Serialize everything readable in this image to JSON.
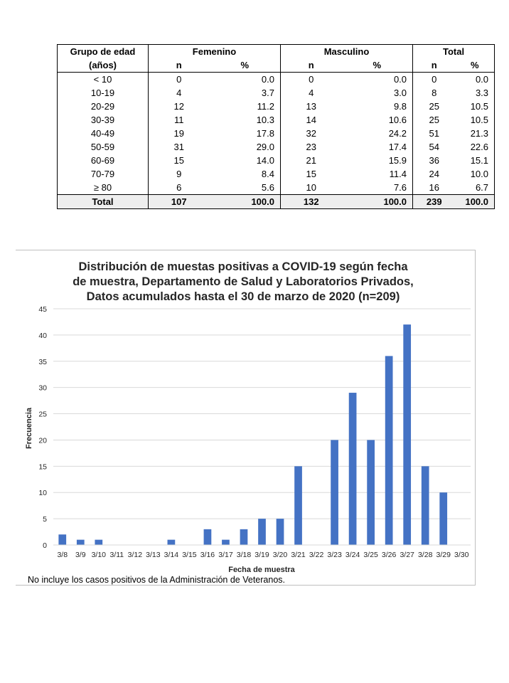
{
  "table": {
    "header_row1": [
      "Grupo de edad",
      "Femenino",
      "Masculino",
      "Total"
    ],
    "header_row2": [
      "(años)",
      "n",
      "%",
      "n",
      "%",
      "n",
      "%"
    ],
    "rows": [
      [
        "< 10",
        "0",
        "0.0",
        "0",
        "0.0",
        "0",
        "0.0"
      ],
      [
        "10-19",
        "4",
        "3.7",
        "4",
        "3.0",
        "8",
        "3.3"
      ],
      [
        "20-29",
        "12",
        "11.2",
        "13",
        "9.8",
        "25",
        "10.5"
      ],
      [
        "30-39",
        "11",
        "10.3",
        "14",
        "10.6",
        "25",
        "10.5"
      ],
      [
        "40-49",
        "19",
        "17.8",
        "32",
        "24.2",
        "51",
        "21.3"
      ],
      [
        "50-59",
        "31",
        "29.0",
        "23",
        "17.4",
        "54",
        "22.6"
      ],
      [
        "60-69",
        "15",
        "14.0",
        "21",
        "15.9",
        "36",
        "15.1"
      ],
      [
        "70-79",
        "9",
        "8.4",
        "15",
        "11.4",
        "24",
        "10.0"
      ],
      [
        "≥ 80",
        "6",
        "5.6",
        "10",
        "7.6",
        "16",
        "6.7"
      ]
    ],
    "total_row": [
      "Total",
      "107",
      "100.0",
      "132",
      "100.0",
      "239",
      "100.0"
    ]
  },
  "chart_data": {
    "type": "bar",
    "title_lines": [
      "Distribución de muestas positivas a COVID-19 según fecha",
      "de muestra, Departamento de Salud y Laboratorios Privados,",
      "Datos acumulados hasta el 30 de marzo de 2020 (n=209)"
    ],
    "xlabel": "Fecha de muestra",
    "ylabel": "Frecuencia",
    "ylim": [
      0,
      45
    ],
    "yticks": [
      0,
      5,
      10,
      15,
      20,
      25,
      30,
      35,
      40,
      45
    ],
    "grid": true,
    "bar_color": "#4472c4",
    "categories": [
      "3/8",
      "3/9",
      "3/10",
      "3/11",
      "3/12",
      "3/13",
      "3/14",
      "3/15",
      "3/16",
      "3/17",
      "3/18",
      "3/19",
      "3/20",
      "3/21",
      "3/22",
      "3/23",
      "3/24",
      "3/25",
      "3/26",
      "3/27",
      "3/28",
      "3/29",
      "3/30"
    ],
    "values": [
      2,
      1,
      1,
      0,
      0,
      0,
      1,
      0,
      3,
      1,
      3,
      5,
      5,
      15,
      0,
      20,
      29,
      20,
      36,
      42,
      15,
      10,
      0
    ]
  },
  "footnote": "No incluye los casos positivos de la Administración de Veteranos."
}
